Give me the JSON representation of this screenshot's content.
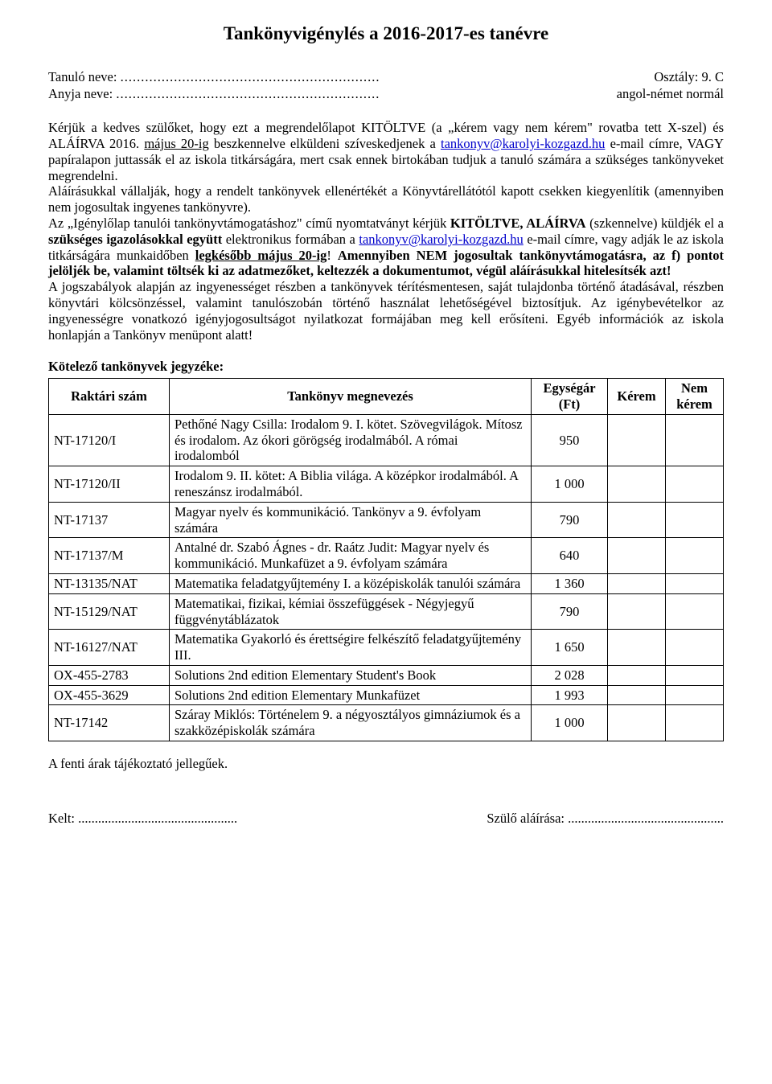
{
  "title": "Tankönyvigénylés a 2016-2017-es tanévre",
  "header": {
    "student_label": "Tanuló neve:",
    "student_dots": "...............................................................",
    "class_label": "Osztály: 9. C",
    "mother_label": "Anyja neve:",
    "mother_dots": "................................................................",
    "lang": "angol-német normál"
  },
  "intro": {
    "p1_a": "Kérjük a kedves szülőket, hogy ezt a megrendelőlapot KITÖLTVE (a „kérem vagy nem kérem\" rovatba tett X-szel) és ALÁÍRVA 2016. ",
    "p1_u": "május 20-ig",
    "p1_b": " beszkennelve elküldeni szíveskedjenek a ",
    "p1_link1": "tankonyv@karolyi-kozgazd.hu",
    "p1_c": " e-mail címre, VAGY papíralapon juttassák el az iskola titkárságára, mert csak ennek birtokában tudjuk a tanuló számára a szükséges tankönyveket megrendelni.",
    "p2": "Aláírásukkal vállalják, hogy a rendelt tankönyvek ellenértékét a Könyvtárellátótól kapott csekken kiegyenlítik (amennyiben nem jogosultak ingyenes tankönyvre).",
    "p3_a": "Az „Igénylőlap tanulói tankönyvtámogatáshoz\" című nyomtatványt kérjük ",
    "p3_b1": "KITÖLTVE, ALÁÍRVA",
    "p3_b": " (szkennelve) küldjék el a ",
    "p3_b2": "szükséges igazolásokkal együtt",
    "p3_c": " elektronikus formában a ",
    "p3_link2": "tankonyv@karolyi-kozgazd.hu",
    "p3_d": " e-mail címre, vagy adják le az iskola titkárságára munkaidőben ",
    "p3_b3": "legkésőbb május 20-ig",
    "p3_e": "! ",
    "p3_b4": "Amennyiben NEM jogosultak tankönyvtámogatásra, az f) pontot jelöljék be, valamint töltsék ki az adatmezőket, keltezzék a dokumentumot, végül aláírásukkal hitelesítsék azt!",
    "p4": "A jogszabályok alapján az ingyenességet részben a tankönyvek térítésmentesen, saját tulajdonba történő átadásával, részben könyvtári kölcsönzéssel, valamint tanulószobán történő használat lehetőségével biztosítjuk. Az igénybevételkor az ingyenességre vonatkozó igényjogosultságot nyilatkozat formájában meg kell erősíteni. Egyéb információk az iskola honlapján a Tankönyv menüpont alatt!"
  },
  "table": {
    "section_title": "Kötelező tankönyvek jegyzéke:",
    "headers": {
      "code": "Raktári szám",
      "name": "Tankönyv megnevezés",
      "price": "Egységár (Ft)",
      "ker": "Kérem",
      "nker": "Nem kérem"
    },
    "rows": [
      {
        "code": "NT-17120/I",
        "name": "Pethőné Nagy Csilla: Irodalom 9. I. kötet. Szövegvilágok. Mítosz és irodalom. Az ókori görögség irodalmából. A római irodalomból",
        "price": "950"
      },
      {
        "code": "NT-17120/II",
        "name": "Irodalom 9. II. kötet: A Biblia világa. A középkor irodalmából. A reneszánsz irodalmából.",
        "price": "1 000"
      },
      {
        "code": "NT-17137",
        "name": "Magyar nyelv és kommunikáció. Tankönyv a 9. évfolyam számára",
        "price": "790"
      },
      {
        "code": "NT-17137/M",
        "name": "Antalné dr. Szabó Ágnes - dr. Raátz Judit: Magyar nyelv és kommunikáció. Munkafüzet a 9. évfolyam számára",
        "price": "640"
      },
      {
        "code": "NT-13135/NAT",
        "name": "Matematika feladatgyűjtemény I. a középiskolák tanulói számára",
        "price": "1 360"
      },
      {
        "code": "NT-15129/NAT",
        "name": "Matematikai, fizikai, kémiai összefüggések - Négyjegyű függvénytáblázatok",
        "price": "790"
      },
      {
        "code": "NT-16127/NAT",
        "name": "Matematika Gyakorló és érettségire felkészítő feladatgyűjtemény III.",
        "price": "1 650"
      },
      {
        "code": "OX-455-2783",
        "name": "Solutions 2nd edition Elementary Student's Book",
        "price": "2 028"
      },
      {
        "code": "OX-455-3629",
        "name": "Solutions 2nd edition Elementary Munkafüzet",
        "price": "1 993"
      },
      {
        "code": "NT-17142",
        "name": "Száray Miklós: Történelem 9. a négyosztályos gimnáziumok és a szakközépiskolák számára",
        "price": "1 000"
      }
    ]
  },
  "footnote": "A fenti árak tájékoztató jellegűek.",
  "footer": {
    "date_label": "Kelt:",
    "date_dots": "................................................",
    "sign_label": "Szülő aláírása:",
    "sign_dots": "..............................................."
  }
}
